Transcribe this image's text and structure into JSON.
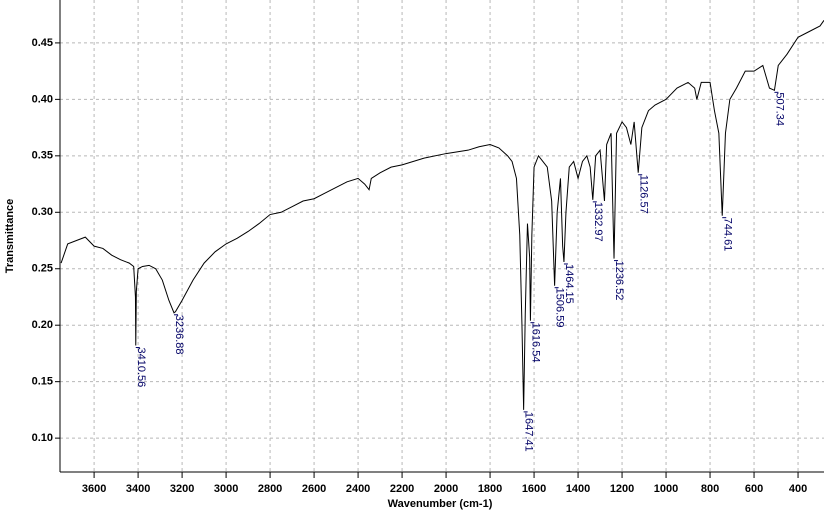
{
  "chart_data": {
    "type": "line",
    "x_label": "Wavenumber (cm-1)",
    "y_label": "Transmittance",
    "xlim": [
      3755,
      282
    ],
    "ylim": [
      0.07,
      0.488
    ],
    "xticks": [
      3600,
      3400,
      3200,
      3000,
      2800,
      2600,
      2400,
      2200,
      2000,
      1800,
      1600,
      1400,
      1200,
      1000,
      800,
      600,
      400
    ],
    "yticks": [
      {
        "value": 0.1,
        "label": "0.10"
      },
      0.15,
      {
        "value": 0.2,
        "label": "0.20"
      },
      0.25,
      {
        "value": 0.3,
        "label": "0.30"
      },
      0.35,
      {
        "value": 0.4,
        "label": "0.40"
      },
      0.45
    ],
    "grid": true,
    "series": [
      {
        "color": "#000000",
        "x": [
          3750,
          3720,
          3680,
          3640,
          3600,
          3560,
          3520,
          3480,
          3440,
          3420,
          3412,
          3410.56,
          3408,
          3400,
          3380,
          3350,
          3320,
          3290,
          3260,
          3236.88,
          3230,
          3200,
          3150,
          3100,
          3050,
          3000,
          2950,
          2900,
          2850,
          2800,
          2750,
          2700,
          2650,
          2600,
          2550,
          2500,
          2450,
          2400,
          2370,
          2350,
          2340,
          2300,
          2250,
          2200,
          2100,
          2000,
          1900,
          1850,
          1800,
          1760,
          1720,
          1700,
          1680,
          1665,
          1655,
          1647.41,
          1640,
          1630,
          1620,
          1616.54,
          1610,
          1600,
          1580,
          1560,
          1540,
          1520,
          1506.59,
          1495,
          1480,
          1470,
          1464.15,
          1455,
          1440,
          1420,
          1400,
          1380,
          1360,
          1345,
          1332.97,
          1320,
          1300,
          1280,
          1270,
          1250,
          1236.52,
          1225,
          1200,
          1180,
          1160,
          1145,
          1126.57,
          1110,
          1080,
          1050,
          1000,
          950,
          900,
          870,
          860,
          840,
          800,
          780,
          760,
          744.61,
          730,
          710,
          680,
          640,
          600,
          560,
          530,
          507.34,
          490,
          450,
          400,
          350,
          300,
          282
        ],
        "values": [
          0.255,
          0.272,
          0.275,
          0.278,
          0.27,
          0.268,
          0.262,
          0.258,
          0.255,
          0.252,
          0.225,
          0.182,
          0.23,
          0.25,
          0.252,
          0.253,
          0.25,
          0.24,
          0.222,
          0.211,
          0.212,
          0.222,
          0.24,
          0.255,
          0.265,
          0.272,
          0.277,
          0.283,
          0.29,
          0.298,
          0.3,
          0.305,
          0.31,
          0.312,
          0.317,
          0.322,
          0.327,
          0.33,
          0.325,
          0.32,
          0.33,
          0.335,
          0.34,
          0.342,
          0.348,
          0.352,
          0.355,
          0.358,
          0.36,
          0.357,
          0.35,
          0.345,
          0.33,
          0.28,
          0.2,
          0.125,
          0.21,
          0.29,
          0.26,
          0.204,
          0.28,
          0.34,
          0.35,
          0.345,
          0.34,
          0.31,
          0.235,
          0.3,
          0.33,
          0.27,
          0.256,
          0.3,
          0.34,
          0.345,
          0.33,
          0.345,
          0.35,
          0.34,
          0.311,
          0.35,
          0.355,
          0.31,
          0.36,
          0.37,
          0.259,
          0.37,
          0.38,
          0.375,
          0.36,
          0.38,
          0.335,
          0.375,
          0.39,
          0.395,
          0.4,
          0.41,
          0.415,
          0.41,
          0.4,
          0.415,
          0.415,
          0.39,
          0.37,
          0.297,
          0.37,
          0.4,
          0.41,
          0.425,
          0.425,
          0.43,
          0.41,
          0.408,
          0.43,
          0.44,
          0.455,
          0.46,
          0.465,
          0.47
        ]
      }
    ],
    "peaks": [
      {
        "x": 3410.56,
        "y": 0.182
      },
      {
        "x": 3236.88,
        "y": 0.211
      },
      {
        "x": 1647.41,
        "y": 0.125
      },
      {
        "x": 1616.54,
        "y": 0.204
      },
      {
        "x": 1506.59,
        "y": 0.235
      },
      {
        "x": 1464.15,
        "y": 0.256
      },
      {
        "x": 1332.97,
        "y": 0.311
      },
      {
        "x": 1236.52,
        "y": 0.259
      },
      {
        "x": 1126.57,
        "y": 0.335
      },
      {
        "x": 744.61,
        "y": 0.297
      },
      {
        "x": 507.34,
        "y": 0.408
      }
    ]
  }
}
